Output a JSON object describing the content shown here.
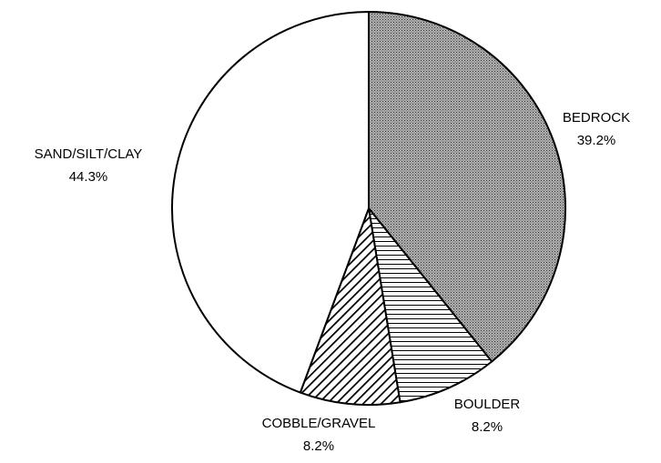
{
  "chart_data": {
    "type": "pie",
    "categories": [
      "BEDROCK",
      "BOULDER",
      "COBBLE/GRAVEL",
      "SAND/SILT/CLAY"
    ],
    "values": [
      39.2,
      8.2,
      8.2,
      44.3
    ],
    "value_labels": [
      "39.2%",
      "8.2%",
      "8.2%",
      "44.3%"
    ],
    "patterns": [
      "crosshatch",
      "horizontal",
      "diagonal",
      "none"
    ],
    "start_angle": 0,
    "direction": "clockwise"
  }
}
